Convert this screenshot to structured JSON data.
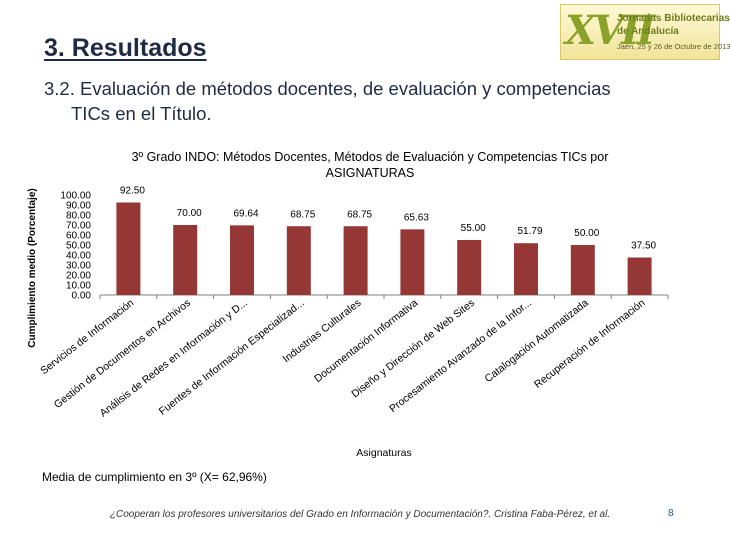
{
  "slide": {
    "title": "3. Resultados",
    "subtitle_line1": "3.2. Evaluación de métodos docentes, de evaluación y competencias",
    "subtitle_line2": "TICs en el Título.",
    "average_note": "Media de cumplimiento en 3º (X= 62,96%)",
    "footer": "¿Cooperan los profesores universitarios del Grado en Información y Documentación?. Cristina Faba-Pérez, et al.",
    "page_number": "8",
    "logo": {
      "roman": "XVII",
      "line1": "Jornadas Bibliotecarias",
      "line2": "de Andalucía",
      "line3": "Jaén, 25 y 26 de Octubre de 2013"
    }
  },
  "chart_data": {
    "type": "bar",
    "title": "3º Grado INDO: Métodos Docentes, Métodos de Evaluación y Competencias TICs por ASIGNATURAS",
    "title_line1": "3º Grado INDO: Métodos Docentes, Métodos de Evaluación y Competencias TICs por",
    "title_line2": "ASIGNATURAS",
    "xlabel": "Asignaturas",
    "ylabel": "Cumplimiento medio (Porcentaje)",
    "ylim": [
      0,
      100
    ],
    "yticks": [
      "100.00",
      "90.00",
      "80.00",
      "70.00",
      "60.00",
      "50.00",
      "40.00",
      "30.00",
      "20.00",
      "10.00",
      "0.00"
    ],
    "categories": [
      "Servicios de Información",
      "Gestión de Documentos en Archivos",
      "Análisis de Redes en Información y D...",
      "Fuentes de Información Especializad...",
      "Industrias Culturales",
      "Documentación Informativa",
      "Diseño y Dirección de Web Sites",
      "Procesamiento Avanzado de la Infor...",
      "Catalogación Automatizada",
      "Recuperación de Información"
    ],
    "values": [
      92.5,
      70.0,
      69.64,
      68.75,
      68.75,
      65.63,
      55.0,
      51.79,
      50.0,
      37.5
    ],
    "value_labels": [
      "92.50",
      "70.00",
      "69.64",
      "68.75",
      "68.75",
      "65.63",
      "55.00",
      "51.79",
      "50.00",
      "37.50"
    ],
    "bar_color": "#953735",
    "grid": false,
    "legend": "none"
  }
}
